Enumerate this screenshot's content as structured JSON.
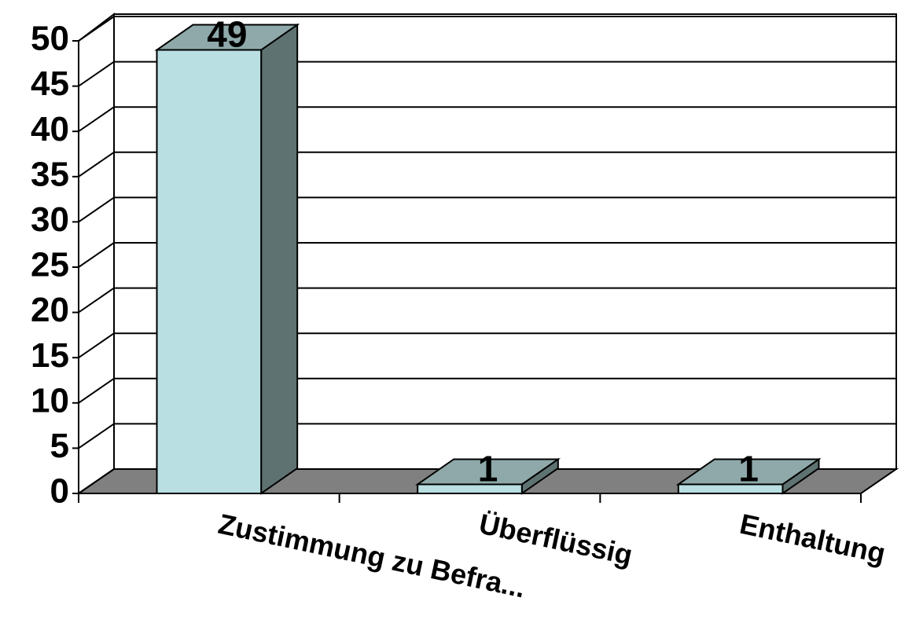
{
  "chart_data": {
    "type": "bar3d",
    "categories": [
      "Zustimmung zu Befra...",
      "Überflüssig",
      "Enthaltung"
    ],
    "values": [
      49,
      1,
      1
    ],
    "colors": {
      "front": "#b9dfe2",
      "top": "#8fa9aa",
      "side": "#5f7272"
    },
    "ylim": [
      0,
      50
    ],
    "yticks": [
      0,
      5,
      10,
      15,
      20,
      25,
      30,
      35,
      40,
      45,
      50
    ],
    "grid": true
  }
}
